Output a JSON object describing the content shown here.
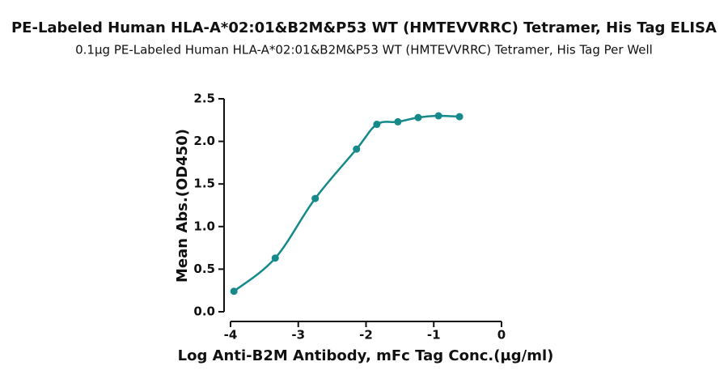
{
  "chart_data": {
    "type": "scatter",
    "title": "PE-Labeled Human HLA-A*02:01&B2M&P53 WT (HMTEVVRRC) Tetramer, His Tag ELISA",
    "subtitle": "0.1µg PE-Labeled Human HLA-A*02:01&B2M&P53 WT (HMTEVVRRC) Tetramer, His Tag Per Well",
    "x_label": "Log Anti-B2M Antibody, mFc Tag Conc.(µg/ml)",
    "y_label": "Mean Abs.(OD450)",
    "x": [
      -3.95,
      -3.34,
      -2.75,
      -2.14,
      -1.84,
      -1.53,
      -1.23,
      -0.93,
      -0.62
    ],
    "series": [
      {
        "name": "OD450",
        "color": "#16898a",
        "values": [
          0.24,
          0.63,
          1.33,
          1.91,
          2.2,
          2.23,
          2.28,
          2.3,
          2.29
        ]
      }
    ],
    "xlim": [
      -4,
      0
    ],
    "xticks": [
      -4,
      -3,
      -2,
      -1,
      0
    ],
    "ylim": [
      0,
      2.5
    ],
    "yticks": [
      {
        "value": 0,
        "label": "0.0"
      },
      0.5,
      {
        "value": 1,
        "label": "1.0"
      },
      1.5,
      {
        "value": 2,
        "label": "2.0"
      },
      2.5
    ],
    "curve": true
  }
}
